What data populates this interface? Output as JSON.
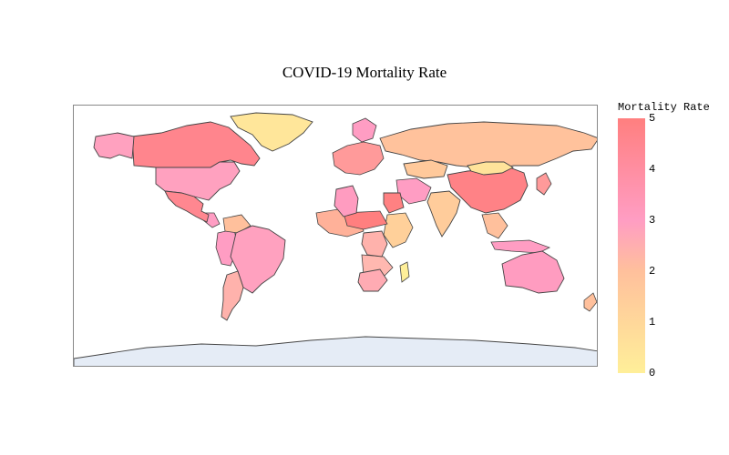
{
  "title": "COVID-19 Mortality Rate",
  "colorbar": {
    "title": "Mortality Rate",
    "ticks": [
      "5",
      "4",
      "3",
      "2",
      "1",
      "0"
    ],
    "colors": [
      "#ff7f7f",
      "#ff9dc3",
      "#ffc09c",
      "#ffef99"
    ]
  },
  "map": {
    "land_stroke": "#444444",
    "antarctica_fill": "#e5ecf6",
    "countries": [
      {
        "name": "Greenland",
        "rate": 0.4
      },
      {
        "name": "Canada",
        "rate": 4.6
      },
      {
        "name": "Alaska",
        "rate": 2.9
      },
      {
        "name": "United States",
        "rate": 2.9
      },
      {
        "name": "Mexico",
        "rate": 4.5
      },
      {
        "name": "Brazil",
        "rate": 2.9
      },
      {
        "name": "Argentina",
        "rate": 2.4
      },
      {
        "name": "Russia",
        "rate": 1.9
      },
      {
        "name": "China",
        "rate": 4.8
      },
      {
        "name": "Mongolia",
        "rate": 0.5
      },
      {
        "name": "India",
        "rate": 1.5
      },
      {
        "name": "Australia",
        "rate": 3.1
      },
      {
        "name": "Algeria",
        "rate": 3.1
      },
      {
        "name": "Egypt",
        "rate": 4.9
      },
      {
        "name": "Kazakhstan",
        "rate": 1.6
      },
      {
        "name": "DR Congo",
        "rate": 2.4
      },
      {
        "name": "South Africa",
        "rate": 2.6
      }
    ]
  }
}
